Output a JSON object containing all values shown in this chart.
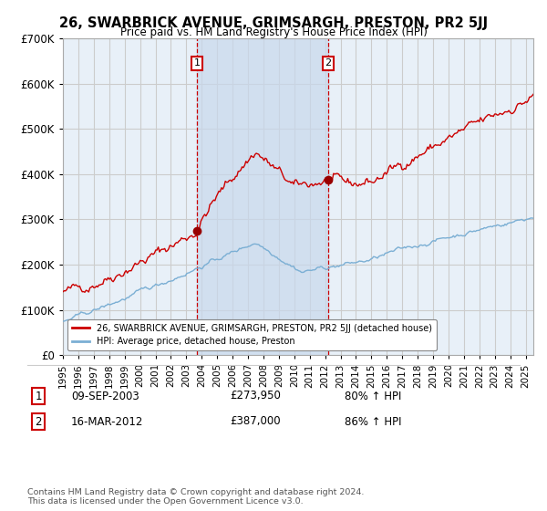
{
  "title": "26, SWARBRICK AVENUE, GRIMSARGH, PRESTON, PR2 5JJ",
  "subtitle": "Price paid vs. HM Land Registry's House Price Index (HPI)",
  "ylim": [
    0,
    700000
  ],
  "xlim_start": 1995.0,
  "xlim_end": 2025.5,
  "purchase1": {
    "date_x": 2003.69,
    "price": 273950,
    "label": "1",
    "date_str": "09-SEP-2003",
    "pct": "80%"
  },
  "purchase2": {
    "date_x": 2012.21,
    "price": 387000,
    "label": "2",
    "date_str": "16-MAR-2012",
    "pct": "86%"
  },
  "legend_line1": "26, SWARBRICK AVENUE, GRIMSARGH, PRESTON, PR2 5JJ (detached house)",
  "legend_line2": "HPI: Average price, detached house, Preston",
  "footer": "Contains HM Land Registry data © Crown copyright and database right 2024.\nThis data is licensed under the Open Government Licence v3.0.",
  "line_color_red": "#cc0000",
  "line_color_blue": "#7bafd4",
  "dot_color_red": "#990000",
  "background_plot": "#e8f0f8",
  "background_fig": "#ffffff",
  "grid_color": "#cccccc",
  "dashed_line_color": "#cc0000",
  "shade_color": "#c8d8ec",
  "label_box_edge": "#cc0000"
}
